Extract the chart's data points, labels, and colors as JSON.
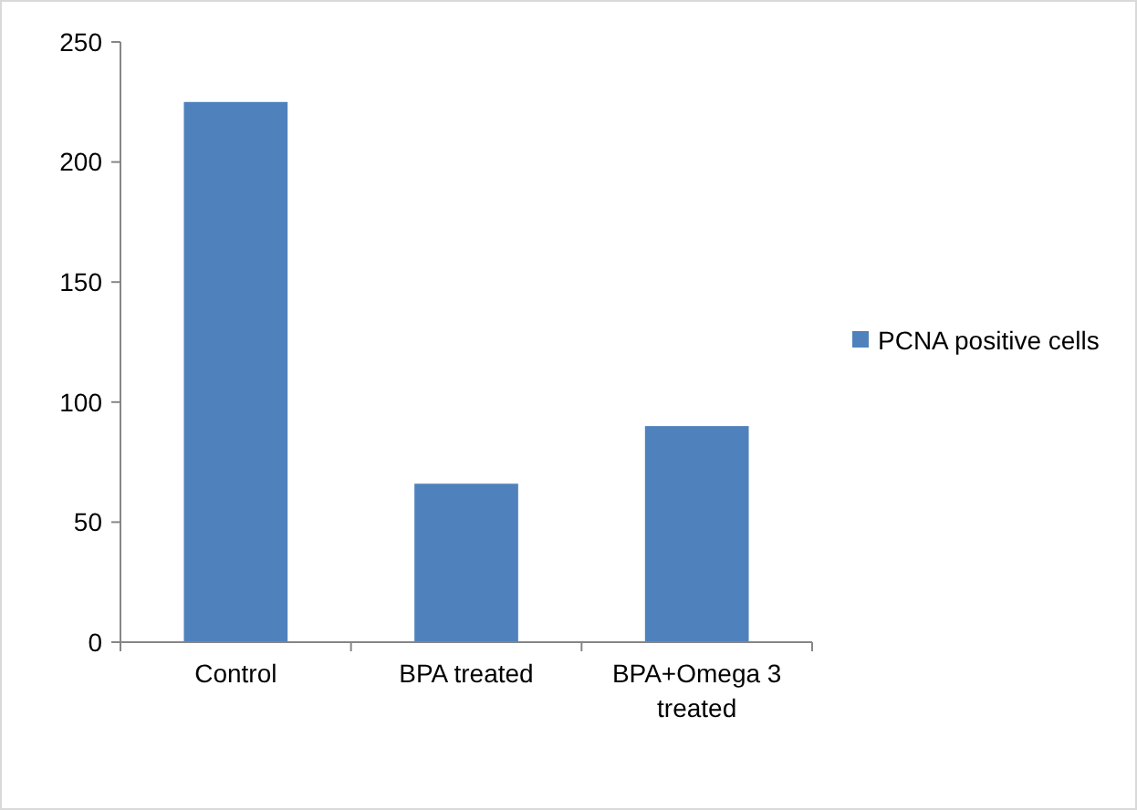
{
  "chart_data": {
    "type": "bar",
    "categories": [
      "Control",
      "BPA treated",
      "BPA+Omega 3 treated"
    ],
    "series": [
      {
        "name": "PCNA positive cells",
        "color": "#4f81bd",
        "values": [
          225,
          66,
          90
        ]
      }
    ],
    "ylim": [
      0,
      250
    ],
    "yticks": [
      0,
      50,
      100,
      150,
      200,
      250
    ],
    "grid": false,
    "legend": "right"
  }
}
